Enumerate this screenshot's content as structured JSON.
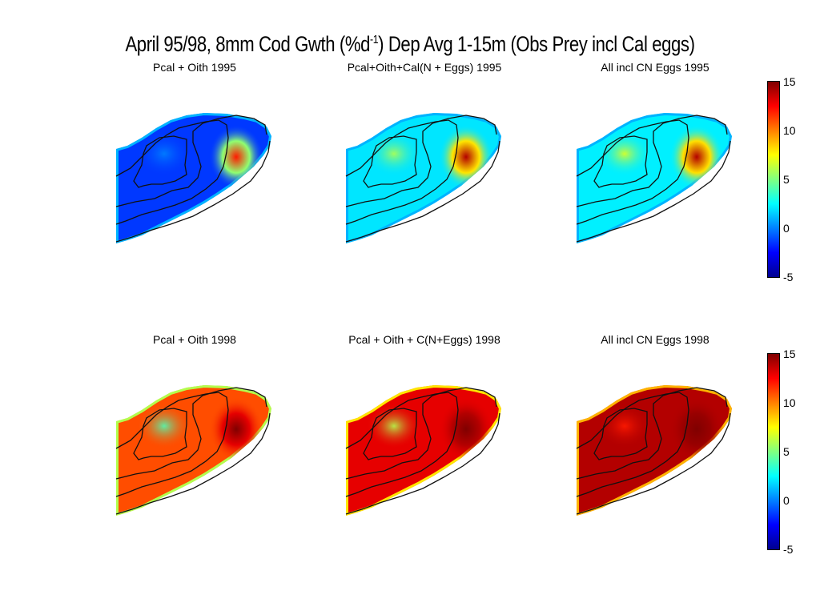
{
  "figure": {
    "title_main": "April 95/98, 8mm Cod Gwth (%d",
    "title_sup": "-1",
    "title_rest": ") Dep Avg 1-15m (Obs Prey incl Cal eggs)"
  },
  "panels": [
    {
      "title": "Pcal + Oith 1995",
      "level": 0.18,
      "hotspot": 0.85,
      "ridge": 0.25
    },
    {
      "title": "Pcal+Oith+Cal(N + Eggs) 1995",
      "level": 0.35,
      "hotspot": 0.95,
      "ridge": 0.55
    },
    {
      "title": "All incl CN Eggs 1995",
      "level": 0.36,
      "hotspot": 0.95,
      "ridge": 0.6
    },
    {
      "title": "Pcal + Oith 1998",
      "level": 0.8,
      "hotspot": 1.0,
      "ridge": 0.45
    },
    {
      "title": "Pcal + Oith + C(N+Eggs) 1998",
      "level": 0.9,
      "hotspot": 1.0,
      "ridge": 0.55
    },
    {
      "title": "All incl CN Eggs 1998",
      "level": 0.95,
      "hotspot": 1.0,
      "ridge": 0.85
    }
  ],
  "colorbar": {
    "ticks": [
      "15",
      "10",
      "5",
      "0",
      "-5"
    ],
    "min": -5,
    "max": 15,
    "colormap": [
      "#00008f",
      "#0000ff",
      "#0080ff",
      "#00ffff",
      "#80ff80",
      "#ffff00",
      "#ff8000",
      "#ff0000",
      "#800000"
    ]
  },
  "chart_data": {
    "type": "heatmap",
    "title": "April 95/98, 8mm Cod Gwth (%d-1) Dep Avg 1-15m (Obs Prey incl Cal eggs)",
    "colorbar_range": [
      -5,
      15
    ],
    "colorbar_ticks": [
      -5,
      0,
      5,
      10,
      15
    ],
    "subplots": [
      "Pcal + Oith 1995",
      "Pcal+Oith+Cal(N + Eggs) 1995",
      "All incl CN Eggs 1995",
      "Pcal + Oith 1998",
      "Pcal + Oith + C(N+Eggs) 1998",
      "All incl CN Eggs 1998"
    ]
  }
}
